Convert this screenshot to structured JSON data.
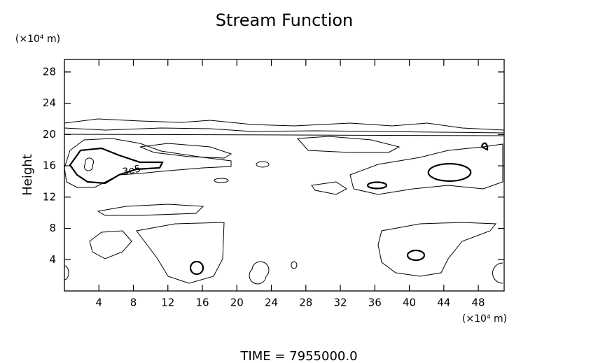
{
  "chart_data": {
    "type": "contour",
    "title": "Stream Function",
    "y_label": "Height",
    "y_unit": "(×10⁴ m)",
    "x_unit": "(×10⁴ m)",
    "footer": "TIME  =  7955000.0",
    "annotations": [
      "3e5"
    ],
    "xlim": [
      0,
      51
    ],
    "xticks": [
      4,
      8,
      12,
      16,
      20,
      24,
      28,
      32,
      36,
      40,
      44,
      48
    ],
    "ylim": [
      0,
      29.6
    ],
    "yticks": [
      4,
      8,
      12,
      16,
      20,
      24,
      28
    ],
    "color": "#000000"
  }
}
